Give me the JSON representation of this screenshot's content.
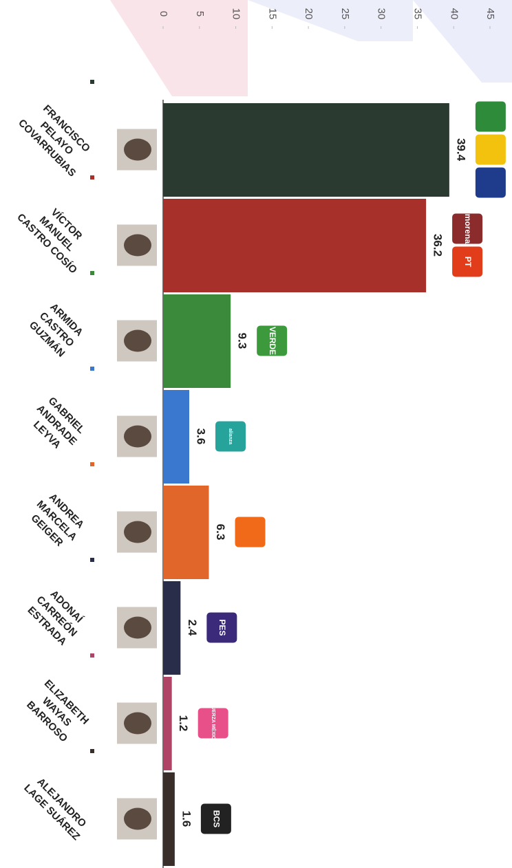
{
  "chart_data": {
    "type": "bar",
    "orientation": "horizontal",
    "categories": [
      [
        "FRANCISCO",
        "PELAYO",
        "COVARRUBIAS"
      ],
      [
        "VÍCTOR",
        "MANUEL",
        "CASTRO COSÍO"
      ],
      [
        "ARMIDA",
        "CASTRO",
        "GUZMÁN"
      ],
      [
        "GABRIEL",
        "ANDRADE",
        "LEYVA"
      ],
      [
        "ANDREA",
        "MARCELA",
        "GEIGER"
      ],
      [
        "ADONAÍ",
        "CARREÓN",
        "ESTRADA"
      ],
      [
        "ELIZABETH",
        "WAYAS",
        "BARROSO"
      ],
      [
        "ALEJANDRO",
        "LAGE SUÁREZ"
      ]
    ],
    "values": [
      39.4,
      36.2,
      9.3,
      3.6,
      6.3,
      2.4,
      1.2,
      1.6
    ],
    "colors": [
      "#2b3a31",
      "#a8302b",
      "#3b8a3c",
      "#3a78d0",
      "#e0662a",
      "#2a2d4a",
      "#b04466",
      "#3a2e2a"
    ],
    "party_logos": [
      [
        {
          "color": "#2e8b3a"
        },
        {
          "color": "#f2c20f"
        },
        {
          "color": "#1f3c8c"
        }
      ],
      [
        {
          "text": "morena",
          "color": "#8b2b2b"
        },
        {
          "text": "PT",
          "color": "#e23d1a"
        }
      ],
      [
        {
          "text": "VERDE",
          "color": "#3c9a3c"
        }
      ],
      [
        {
          "text": "alianza",
          "color": "#26a49c"
        }
      ],
      [
        {
          "color": "#f06a1a"
        }
      ],
      [
        {
          "text": "PES",
          "color": "#3b2a7a"
        }
      ],
      [
        {
          "text": "FUERZA MÉXICO",
          "color": "#e8508a"
        }
      ],
      [
        {
          "text": "BCS",
          "color": "#222222"
        }
      ]
    ],
    "xlim": [
      0,
      45
    ],
    "xticks": [
      0,
      5,
      10,
      15,
      20,
      25,
      30,
      35,
      40,
      45
    ]
  }
}
